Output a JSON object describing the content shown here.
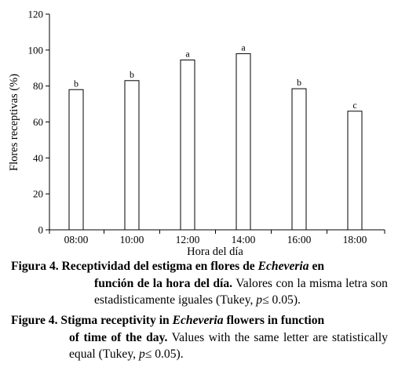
{
  "chart_data": {
    "type": "bar",
    "categories": [
      "08:00",
      "10:00",
      "12:00",
      "14:00",
      "16:00",
      "18:00"
    ],
    "values": [
      78,
      83,
      94.5,
      98,
      78.5,
      66
    ],
    "letters": [
      "b",
      "b",
      "a",
      "a",
      "b",
      "c"
    ],
    "xlabel": "Hora del día",
    "ylabel": "Flores receptivas (%)",
    "ylim": [
      0,
      120
    ],
    "yticks": [
      "0",
      "20",
      "40",
      "60",
      "80",
      "100",
      "120"
    ],
    "grid": false,
    "bar_fill": "#ffffff",
    "bar_stroke": "#000000"
  },
  "caption_es": {
    "label": "Figura 4.",
    "bold_a": "Receptividad del estigma en flores de",
    "genus": "Echeveria",
    "bold_b": "en función de la hora del día.",
    "rest_a": "Valores con la misma letra son estadisticamente iguales (Tukey,",
    "p": "p",
    "rest_b": "≤ 0.05)."
  },
  "caption_en": {
    "label": "Figure 4.",
    "bold_a": "Stigma receptivity in",
    "genus": "Echeveria",
    "bold_b": "flowers in function of time of the day.",
    "rest_a": "Values with the same letter are statistically equal (Tukey,",
    "p": "p",
    "rest_b": "≤ 0.05)."
  }
}
